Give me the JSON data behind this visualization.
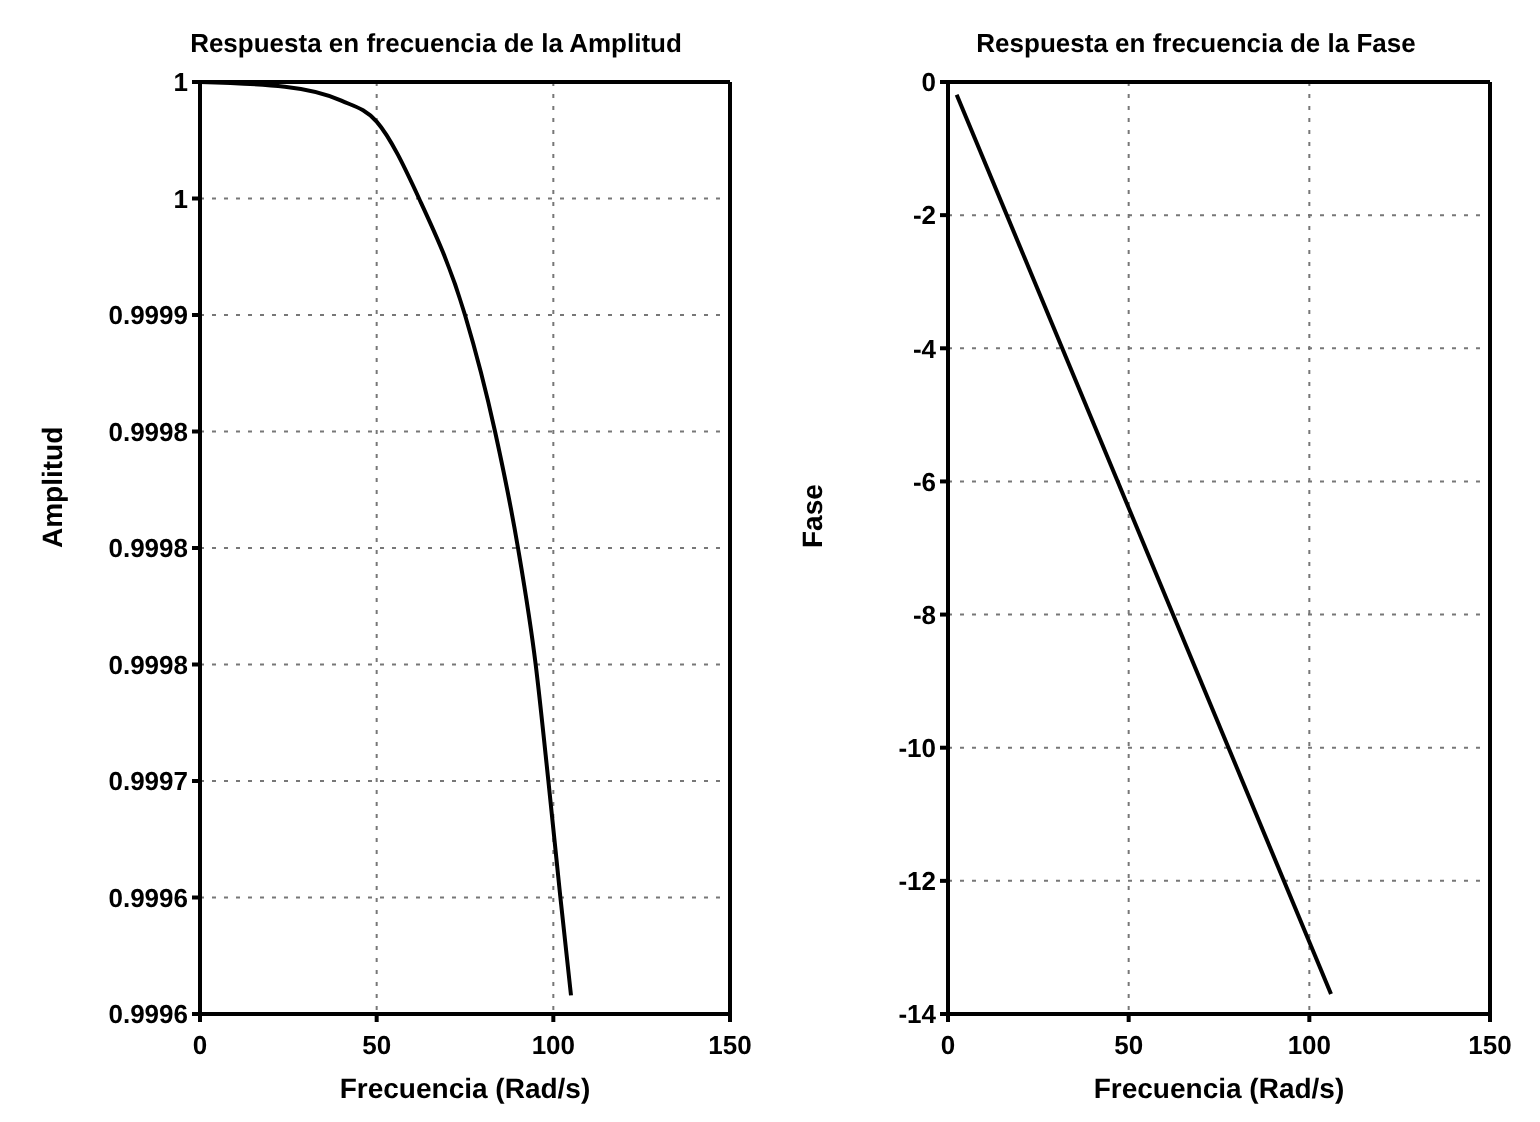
{
  "chart_data": [
    {
      "type": "line",
      "title": "Respuesta en frecuencia de la Amplitud",
      "xlabel": "Frecuencia (Rad/s)",
      "ylabel": "Amplitud",
      "grid": true,
      "marker": "none",
      "line_style": "solid",
      "x": [
        0,
        24,
        40,
        50,
        62,
        75,
        83.5,
        90,
        95,
        98.6,
        102,
        105
      ],
      "series": [
        {
          "color": "#000000",
          "values": [
            1,
            0.999998,
            0.999992,
            0.999983,
            0.99995,
            0.9999,
            0.99985,
            0.9998,
            0.99975,
            0.9997,
            0.99965,
            0.999608
          ]
        }
      ],
      "xlim": [
        0,
        150
      ],
      "xticks": [
        0,
        50,
        100,
        150
      ],
      "ylim": [
        0.9996,
        1
      ],
      "yticks": [
        {
          "value": 0.9996,
          "label": "0.9996"
        },
        {
          "value": 0.99965,
          "label": "0.9996"
        },
        {
          "value": 0.9997,
          "label": "0.9997"
        },
        {
          "value": 0.99975,
          "label": "0.9998"
        },
        {
          "value": 0.9998,
          "label": "0.9998"
        },
        {
          "value": 0.99985,
          "label": "0.9998"
        },
        {
          "value": 0.9999,
          "label": "0.9999"
        },
        {
          "value": 0.99995,
          "label": "1"
        },
        {
          "value": 1,
          "label": "1"
        }
      ]
    },
    {
      "type": "line",
      "title": "Respuesta en frecuencia de la Fase",
      "xlabel": "Frecuencia (Rad/s)",
      "ylabel": "Fase",
      "grid": true,
      "marker": "none",
      "line_style": "solid",
      "x": [
        2.4,
        106
      ],
      "series": [
        {
          "color": "#000000",
          "values": [
            -0.19,
            -13.7
          ]
        }
      ],
      "xlim": [
        0,
        150
      ],
      "xticks": [
        0,
        50,
        100,
        150
      ],
      "ylim": [
        -14,
        0
      ],
      "yticks": [
        -14,
        -12,
        -10,
        -8,
        -6,
        -4,
        -2,
        0
      ]
    }
  ]
}
